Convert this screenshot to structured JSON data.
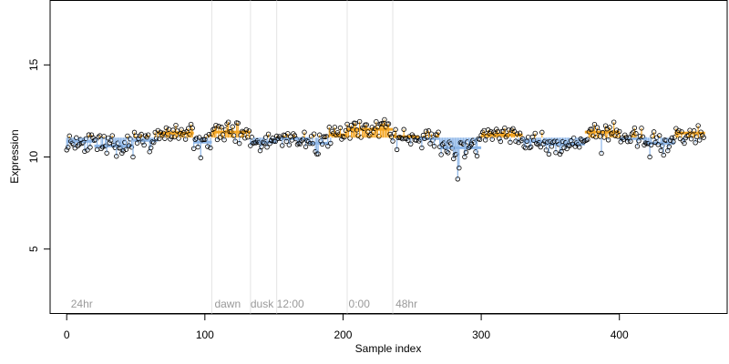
{
  "chart_data": {
    "type": "scatter",
    "title": "",
    "xlabel": "Sample index",
    "ylabel": "Expression",
    "xlim": [
      -12,
      478
    ],
    "ylim": [
      1.5,
      18.5
    ],
    "x_ticks": [
      0,
      100,
      200,
      300,
      400
    ],
    "y_ticks": [
      5,
      10,
      15
    ],
    "baseline": 11.05,
    "colors": {
      "above": "#F5A623",
      "below": "#8DB6E8",
      "point_stroke": "#000000",
      "phase_line": "#e4e4e4",
      "phase_label": "#9a9a9a"
    },
    "phase_markers": [
      {
        "x": 105,
        "label": ""
      },
      {
        "x": 133,
        "label": ""
      },
      {
        "x": 152,
        "label": ""
      },
      {
        "x": 203,
        "label": ""
      },
      {
        "x": 236,
        "label": ""
      }
    ],
    "phase_labels": [
      {
        "x": 3,
        "text": "24hr"
      },
      {
        "x": 107,
        "text": "dawn"
      },
      {
        "x": 133,
        "text": "dusk"
      },
      {
        "x": 152,
        "text": "12:00"
      },
      {
        "x": 204,
        "text": "0:00"
      },
      {
        "x": 238,
        "text": "48hr"
      }
    ],
    "segments": [
      {
        "start": 0,
        "end": 20,
        "value": 10.85
      },
      {
        "start": 20,
        "end": 48,
        "value": 10.6
      },
      {
        "start": 48,
        "end": 66,
        "value": 10.9
      },
      {
        "start": 66,
        "end": 92,
        "value": 11.3
      },
      {
        "start": 92,
        "end": 105,
        "value": 10.8
      },
      {
        "start": 105,
        "end": 133,
        "value": 11.35
      },
      {
        "start": 133,
        "end": 152,
        "value": 10.8
      },
      {
        "start": 152,
        "end": 175,
        "value": 11.0
      },
      {
        "start": 175,
        "end": 190,
        "value": 10.75
      },
      {
        "start": 190,
        "end": 203,
        "value": 11.2
      },
      {
        "start": 203,
        "end": 236,
        "value": 11.5
      },
      {
        "start": 236,
        "end": 255,
        "value": 11.1
      },
      {
        "start": 255,
        "end": 270,
        "value": 11.0
      },
      {
        "start": 270,
        "end": 300,
        "value": 10.5
      },
      {
        "start": 300,
        "end": 330,
        "value": 11.2
      },
      {
        "start": 330,
        "end": 345,
        "value": 10.85
      },
      {
        "start": 345,
        "end": 375,
        "value": 10.7
      },
      {
        "start": 375,
        "end": 400,
        "value": 11.35
      },
      {
        "start": 400,
        "end": 420,
        "value": 11.0
      },
      {
        "start": 420,
        "end": 440,
        "value": 10.75
      },
      {
        "start": 440,
        "end": 462,
        "value": 11.3
      }
    ],
    "spikes": [
      {
        "x": 283,
        "y": 8.8
      },
      {
        "x": 284,
        "y": 9.4
      },
      {
        "x": 280,
        "y": 9.9
      },
      {
        "x": 288,
        "y": 10.0
      },
      {
        "x": 297,
        "y": 10.05
      },
      {
        "x": 48,
        "y": 10.0
      },
      {
        "x": 97,
        "y": 9.95
      },
      {
        "x": 422,
        "y": 10.0
      },
      {
        "x": 432,
        "y": 10.1
      },
      {
        "x": 357,
        "y": 10.15
      },
      {
        "x": 387,
        "y": 10.2
      },
      {
        "x": 239,
        "y": 10.4
      }
    ],
    "n_points": 462,
    "noise_seed": 11
  }
}
